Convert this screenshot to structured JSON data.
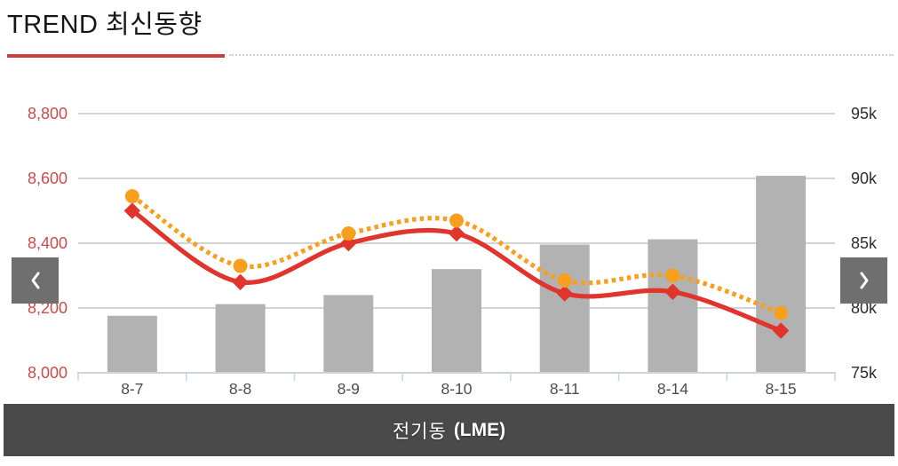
{
  "header": {
    "title": "TREND 최신동향"
  },
  "nav": {
    "prev_icon": "chevron-left",
    "next_icon": "chevron-right"
  },
  "footer": {
    "instrument": "전기동",
    "exchange": "(LME)"
  },
  "chart_data": {
    "type": "combo: gray bars (right axis) + solid red smoothed line and dotted orange smoothed line (left axis)",
    "categories": [
      "8-7",
      "8-8",
      "8-9",
      "8-10",
      "8-11",
      "8-14",
      "8-15"
    ],
    "series": [
      {
        "name": "volume-bars",
        "type": "bar",
        "axis": "right",
        "color": "#b2b2b2",
        "values": [
          79.4,
          80.3,
          81.0,
          83.0,
          84.9,
          85.3,
          90.2
        ],
        "unit": "k"
      },
      {
        "name": "price-line-solid",
        "type": "line",
        "axis": "left",
        "color": "#e0342c",
        "style": "solid",
        "marker": "diamond",
        "values": [
          8500,
          8280,
          8400,
          8430,
          8245,
          8250,
          8130
        ]
      },
      {
        "name": "price-line-dotted",
        "type": "line",
        "axis": "left",
        "color": "#f8a01d",
        "style": "dotted",
        "marker": "circle",
        "values": [
          8545,
          8330,
          8430,
          8470,
          8285,
          8300,
          8185
        ]
      }
    ],
    "left_axis": {
      "min": 8000,
      "max": 8800,
      "tick_values": [
        8800,
        8600,
        8400,
        8200,
        8000
      ],
      "ticks": [
        "8,800",
        "8,600",
        "8,400",
        "8,200",
        "8,000"
      ],
      "color": "#cf4a4a"
    },
    "right_axis": {
      "min": 75,
      "max": 95,
      "tick_values": [
        95,
        90,
        85,
        80,
        75
      ],
      "ticks": [
        "95k",
        "90k",
        "85k",
        "80k",
        "75k"
      ],
      "color": "#2e2e2e"
    },
    "x_axis": {
      "label_color": "#4d4d4d"
    },
    "colors": {
      "grid": "#c6c6c6",
      "axis_line": "#c9d4de"
    },
    "legend": "none",
    "grid": "on"
  }
}
